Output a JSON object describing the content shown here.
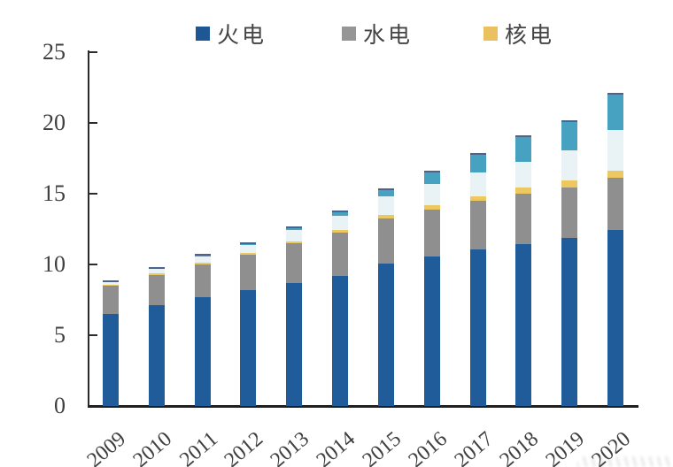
{
  "legend": {
    "items": [
      {
        "label": "火电",
        "color": "#1F5795"
      },
      {
        "label": "水电",
        "color": "#969696"
      },
      {
        "label": "核电",
        "color": "#E9C25F"
      }
    ]
  },
  "chart_data": {
    "type": "bar",
    "stacked": true,
    "title": "",
    "xlabel": "",
    "ylabel": "",
    "categories": [
      "2009",
      "2010",
      "2011",
      "2012",
      "2013",
      "2014",
      "2015",
      "2016",
      "2017",
      "2018",
      "2019",
      "2020"
    ],
    "series": [
      {
        "name": "火电",
        "in_legend": true,
        "color": "#1F5C99",
        "values": [
          6.51,
          7.1,
          7.68,
          8.19,
          8.7,
          9.2,
          10.06,
          10.54,
          11.06,
          11.44,
          11.9,
          12.45
        ]
      },
      {
        "name": "水电",
        "in_legend": true,
        "color": "#8F8F8F",
        "values": [
          1.96,
          2.16,
          2.33,
          2.49,
          2.8,
          3.05,
          3.2,
          3.32,
          3.41,
          3.53,
          3.56,
          3.7
        ]
      },
      {
        "name": "核电",
        "in_legend": true,
        "color": "#EDC75F",
        "values": [
          0.09,
          0.11,
          0.13,
          0.13,
          0.15,
          0.2,
          0.27,
          0.34,
          0.36,
          0.45,
          0.49,
          0.5
        ]
      },
      {
        "name": "unlabeled-pale-segment",
        "in_legend": false,
        "color": "#E9F2F5",
        "values": [
          0.17,
          0.3,
          0.46,
          0.61,
          0.77,
          0.96,
          1.31,
          1.49,
          1.64,
          1.84,
          2.1,
          2.82
        ]
      },
      {
        "name": "unlabeled-teal-segment",
        "in_legend": false,
        "color": "#47A2C1",
        "values": [
          0.0,
          0.0,
          0.02,
          0.03,
          0.16,
          0.25,
          0.42,
          0.78,
          1.3,
          1.74,
          2.04,
          2.53
        ]
      }
    ],
    "ylim": [
      0,
      25
    ],
    "yticks": [
      0,
      5,
      10,
      15,
      20,
      25
    ],
    "y_tick_labels": [
      "0",
      "5",
      "10",
      "15",
      "20",
      "25"
    ],
    "grid": false,
    "legend_position": "top",
    "bar_top_cap_color": "#4A648E",
    "axis_color": "#2b2b2b"
  }
}
